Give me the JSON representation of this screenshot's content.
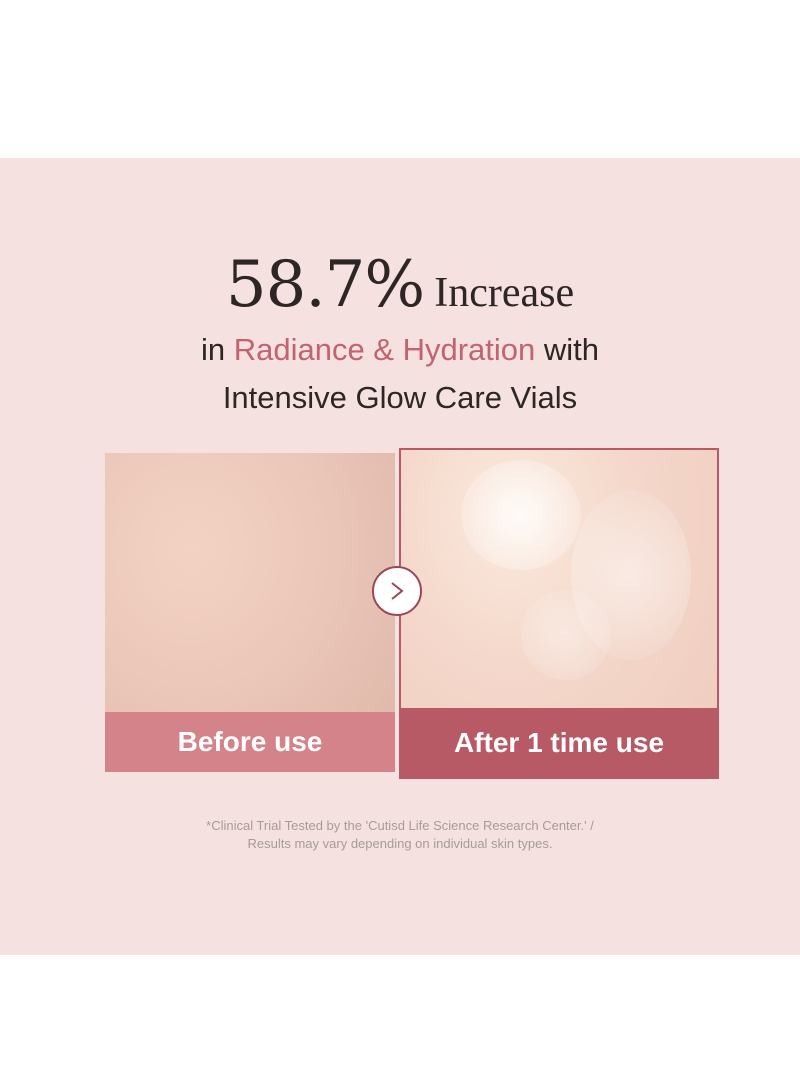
{
  "headline": {
    "stat": "58.7%",
    "stat_suffix": "Increase"
  },
  "subheadline": {
    "prefix": "in",
    "highlight": "Radiance & Hydration",
    "suffix": "with",
    "line2": "Intensive Glow Care Vials"
  },
  "comparison": {
    "before_label": "Before use",
    "after_label": "After 1 time use",
    "arrow_icon": "chevron-right-icon"
  },
  "disclaimer": {
    "line1": "*Clinical Trial Tested by the 'Cutisd Life Science Research Center.' /",
    "line2": "Results may vary depending on individual skin types."
  },
  "colors": {
    "background": "#f5e1e0",
    "accent": "#c06470",
    "before_label_bg": "#d5838a",
    "after_label_bg": "#b85a66"
  }
}
